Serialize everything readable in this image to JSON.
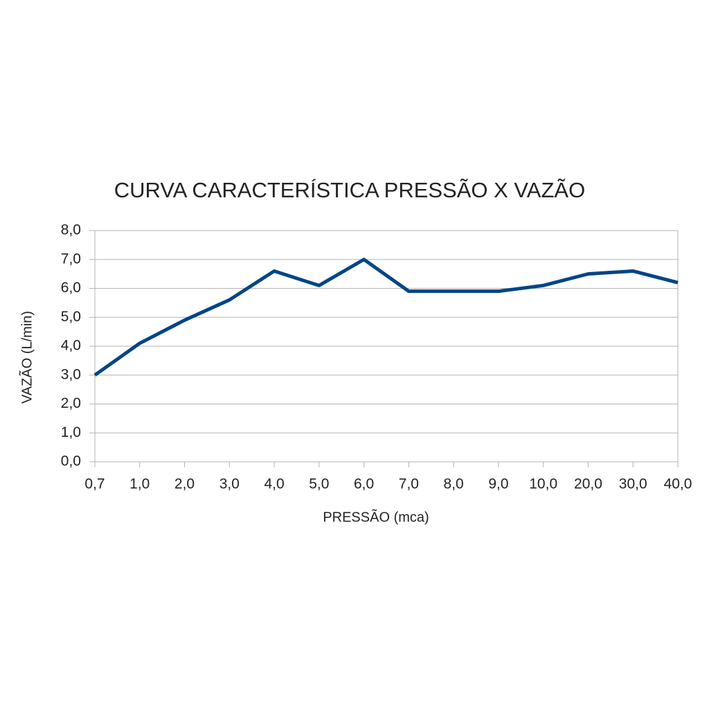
{
  "chart_data": {
    "type": "line",
    "title": "CURVA CARACTERÍSTICA PRESSÃO X VAZÃO",
    "x_label": "PRESSÃO (mca)",
    "y_label": "VAZÃO (L/min)",
    "categories": [
      "0,7",
      "1,0",
      "2,0",
      "3,0",
      "4,0",
      "5,0",
      "6,0",
      "7,0",
      "8,0",
      "9,0",
      "10,0",
      "20,0",
      "30,0",
      "40,0"
    ],
    "series": [
      {
        "name": "VAZÃO",
        "color": "#004586",
        "values": [
          3.0,
          4.1,
          4.9,
          5.6,
          6.6,
          6.1,
          7.0,
          5.9,
          5.9,
          5.9,
          6.1,
          6.5,
          6.6,
          6.2
        ]
      }
    ],
    "ylim": [
      0,
      8
    ],
    "yticks": [
      {
        "value": 0,
        "label": "0,0"
      },
      {
        "value": 1,
        "label": "1,0"
      },
      {
        "value": 2,
        "label": "2,0"
      },
      {
        "value": 3,
        "label": "3,0"
      },
      {
        "value": 4,
        "label": "4,0"
      },
      {
        "value": 5,
        "label": "5,0"
      },
      {
        "value": 6,
        "label": "6,0"
      },
      {
        "value": 7,
        "label": "7,0"
      },
      {
        "value": 8,
        "label": "8,0"
      }
    ],
    "grid": true
  }
}
